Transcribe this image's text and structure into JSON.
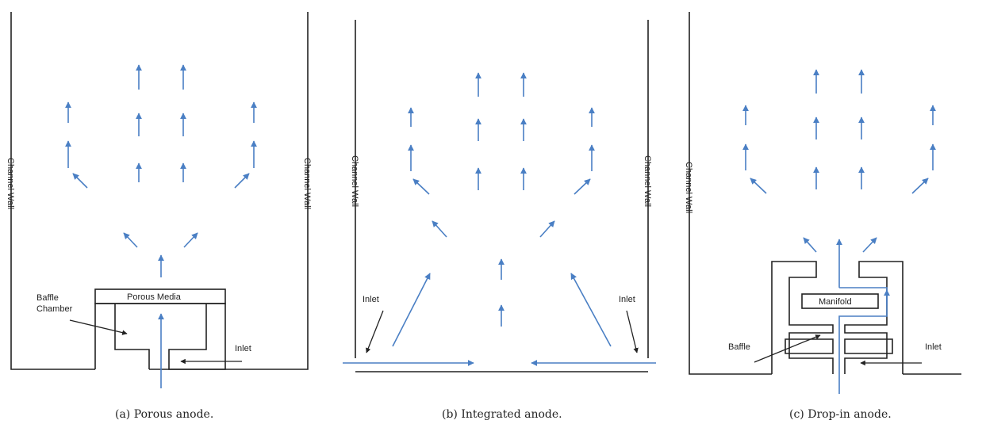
{
  "panel_a": {
    "wall_label": "Channel Wall",
    "porous_label": "Porous Media",
    "baffle_label_line1": "Baffle",
    "baffle_label_line2": "Chamber",
    "inlet_label": "Inlet",
    "caption": "(a) Porous anode."
  },
  "panel_b": {
    "wall_label": "Channel Wall",
    "inlet_label": "Inlet",
    "caption": "(b) Integrated anode."
  },
  "panel_c": {
    "wall_label": "Channel Wall",
    "manifold_label": "Manifold",
    "baffle_label": "Baffle",
    "inlet_label": "Inlet",
    "caption": "(c) Drop-in anode."
  },
  "colors": {
    "flow": "#4a7fc4",
    "line": "#222222"
  }
}
